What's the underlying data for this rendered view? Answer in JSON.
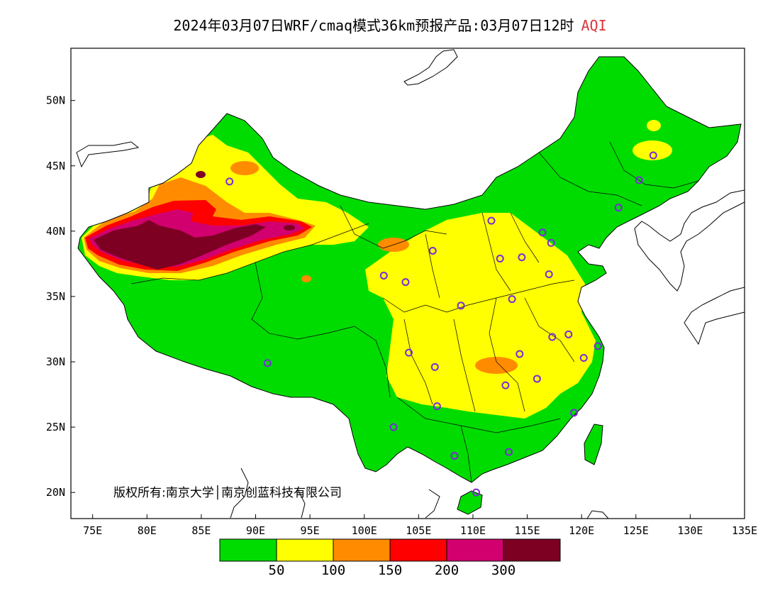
{
  "title": {
    "main": "2024年03月07日WRF/cmaq模式36km预报产品:03月07日12时",
    "variable": "AQI"
  },
  "copyright": "版权所有:南京大学│南京创蓝科技有限公司",
  "axes": {
    "x_ticks": [
      "75E",
      "80E",
      "85E",
      "90E",
      "95E",
      "100E",
      "105E",
      "110E",
      "115E",
      "120E",
      "125E",
      "130E",
      "135E"
    ],
    "y_ticks": [
      "50N",
      "45N",
      "40N",
      "35N",
      "30N",
      "25N",
      "20N"
    ],
    "lon_range": [
      73,
      135
    ],
    "lat_range": [
      18,
      54
    ]
  },
  "legend": {
    "colors": [
      "#00dc00",
      "#ffff00",
      "#ff8c00",
      "#ff0000",
      "#d2006e",
      "#7d0023"
    ],
    "labels": [
      "50",
      "100",
      "150",
      "200",
      "300"
    ]
  },
  "stations": [
    {
      "lon": 87.6,
      "lat": 43.8
    },
    {
      "lon": 91.1,
      "lat": 29.9
    },
    {
      "lon": 101.8,
      "lat": 36.6
    },
    {
      "lon": 103.8,
      "lat": 36.1
    },
    {
      "lon": 106.3,
      "lat": 38.5
    },
    {
      "lon": 111.7,
      "lat": 40.8
    },
    {
      "lon": 112.5,
      "lat": 37.9
    },
    {
      "lon": 114.5,
      "lat": 38.0
    },
    {
      "lon": 116.4,
      "lat": 39.9
    },
    {
      "lon": 117.2,
      "lat": 39.1
    },
    {
      "lon": 123.4,
      "lat": 41.8
    },
    {
      "lon": 125.3,
      "lat": 43.9
    },
    {
      "lon": 126.6,
      "lat": 45.8
    },
    {
      "lon": 117.0,
      "lat": 36.7
    },
    {
      "lon": 113.6,
      "lat": 34.8
    },
    {
      "lon": 108.9,
      "lat": 34.3
    },
    {
      "lon": 104.1,
      "lat": 30.7
    },
    {
      "lon": 106.5,
      "lat": 29.6
    },
    {
      "lon": 114.3,
      "lat": 30.6
    },
    {
      "lon": 117.3,
      "lat": 31.9
    },
    {
      "lon": 118.8,
      "lat": 32.1
    },
    {
      "lon": 121.5,
      "lat": 31.2
    },
    {
      "lon": 120.2,
      "lat": 30.3
    },
    {
      "lon": 115.9,
      "lat": 28.7
    },
    {
      "lon": 113.0,
      "lat": 28.2
    },
    {
      "lon": 106.7,
      "lat": 26.6
    },
    {
      "lon": 102.7,
      "lat": 25.0
    },
    {
      "lon": 108.3,
      "lat": 22.8
    },
    {
      "lon": 113.3,
      "lat": 23.1
    },
    {
      "lon": 119.3,
      "lat": 26.1
    },
    {
      "lon": 110.3,
      "lat": 20.0
    }
  ]
}
